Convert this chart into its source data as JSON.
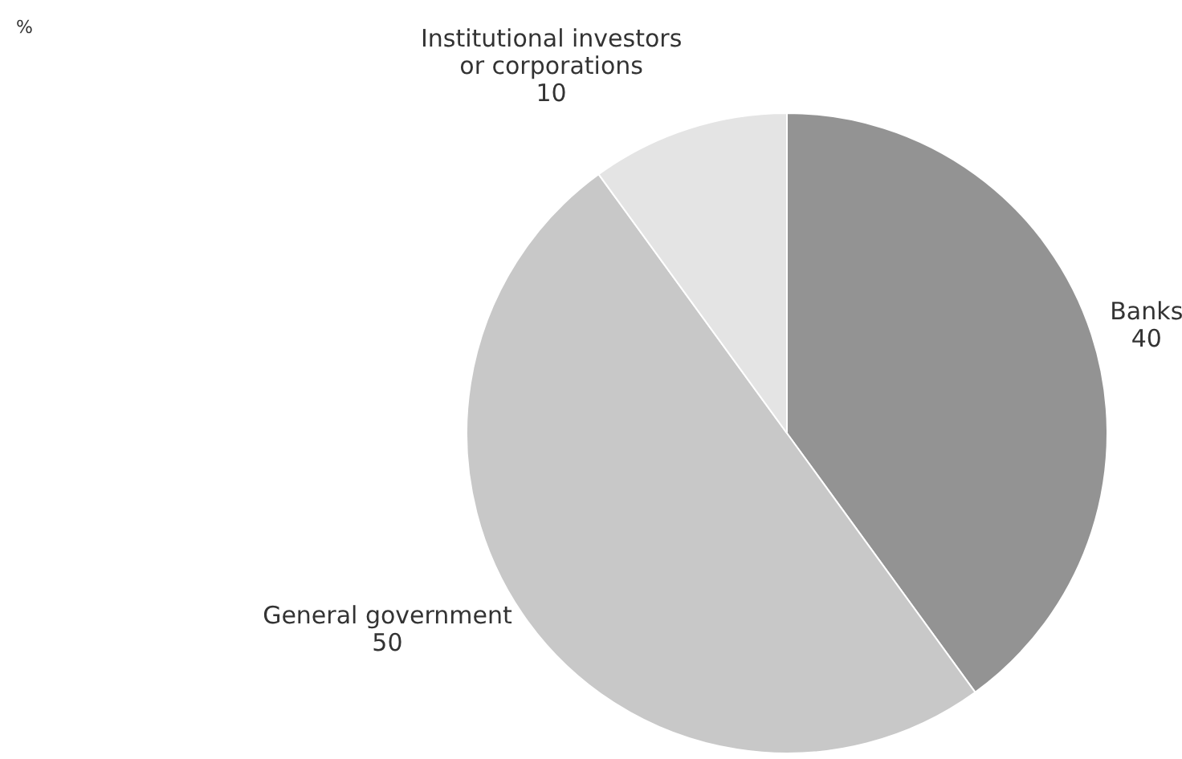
{
  "chart_data": {
    "type": "pie",
    "annotations": [
      "%"
    ],
    "categories": [
      "Banks",
      "General government",
      "Institutional investors or corporations"
    ],
    "values": [
      40,
      50,
      10
    ],
    "colors": [
      "#939393",
      "#c8c8c8",
      "#e4e4e4"
    ],
    "data_labels": true,
    "legend": false
  }
}
